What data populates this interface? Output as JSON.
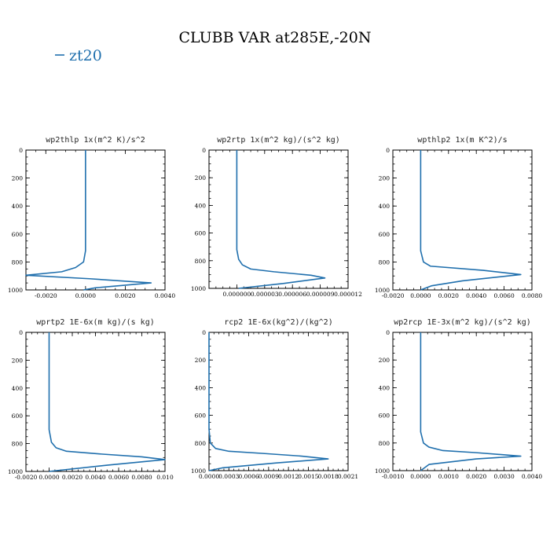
{
  "figure": {
    "title": "CLUBB VAR at285E,-20N",
    "legend": {
      "label": "zt20",
      "color": "#1f6fad"
    }
  },
  "chart_data": [
    {
      "type": "line",
      "title": "wp2thlp  1x(m^2 K)/s^2",
      "xlim": [
        -0.003,
        0.004
      ],
      "ylim": [
        1000,
        0
      ],
      "xticks": [
        -0.002,
        0.0,
        0.002,
        0.004
      ],
      "xtick_labels": [
        "-0.0020",
        "0.0000",
        "0.0020",
        "0.0040"
      ],
      "yticks": [
        0,
        200,
        400,
        600,
        800,
        1000
      ],
      "series": [
        {
          "x": [
            0.0,
            0.0,
            0.0,
            -0.0001,
            -0.0005,
            -0.0012,
            -0.003,
            0.0002,
            0.0033,
            0.0005,
            -0.0001
          ],
          "y": [
            0,
            300,
            720,
            800,
            840,
            870,
            895,
            920,
            950,
            985,
            1000
          ]
        }
      ]
    },
    {
      "type": "line",
      "title": "wp2rtp  1x(m^2 kg)/(s^2 kg)",
      "xlim": [
        -3e-06,
        1.2e-05
      ],
      "ylim": [
        1000,
        0
      ],
      "xticks": [
        0.0,
        3e-06,
        6e-06,
        9e-06,
        1.2e-05
      ],
      "xtick_labels": [
        "0.000000",
        "0.000003",
        "0.000006",
        "0.000009",
        "0.000012"
      ],
      "yticks": [
        0,
        200,
        400,
        600,
        800,
        1000
      ],
      "series": [
        {
          "x": [
            0.0,
            0.0,
            0.0,
            2e-07,
            6e-07,
            1.5e-06,
            4e-06,
            8e-06,
            9.5e-06,
            5e-06,
            2e-07
          ],
          "y": [
            0,
            300,
            720,
            790,
            830,
            860,
            880,
            905,
            925,
            965,
            1000
          ]
        }
      ]
    },
    {
      "type": "line",
      "title": "wpthlp2  1x(m K^2)/s",
      "xlim": [
        -0.002,
        0.008
      ],
      "ylim": [
        1000,
        0
      ],
      "xticks": [
        -0.002,
        0.0,
        0.002,
        0.004,
        0.006,
        0.008
      ],
      "xtick_labels": [
        "-0.0020",
        "0.0000",
        "0.0020",
        "0.0040",
        "0.0060",
        "0.0080"
      ],
      "yticks": [
        0,
        200,
        400,
        600,
        800,
        1000
      ],
      "series": [
        {
          "x": [
            0.0,
            0.0,
            0.0,
            0.0002,
            0.0007,
            0.0045,
            0.0072,
            0.003,
            0.0008,
            0.0
          ],
          "y": [
            0,
            300,
            720,
            800,
            830,
            860,
            890,
            935,
            970,
            1000
          ]
        }
      ]
    },
    {
      "type": "line",
      "title": "wprtp2  1E-6x(m kg)/(s kg)",
      "xlim": [
        -0.002,
        0.01
      ],
      "ylim": [
        1000,
        0
      ],
      "xticks": [
        -0.002,
        0.0,
        0.002,
        0.004,
        0.006,
        0.008,
        0.01
      ],
      "xtick_labels": [
        "-0.0020",
        "0.0000",
        "0.0020",
        "0.0040",
        "0.0060",
        "0.0080",
        "0.010"
      ],
      "yticks": [
        0,
        200,
        400,
        600,
        800,
        1000
      ],
      "series": [
        {
          "x": [
            0.0,
            0.0,
            0.0,
            0.0002,
            0.0006,
            0.0015,
            0.0045,
            0.008,
            0.01,
            0.005,
            0.0
          ],
          "y": [
            0,
            300,
            700,
            790,
            830,
            855,
            875,
            895,
            915,
            955,
            1000
          ]
        }
      ]
    },
    {
      "type": "line",
      "title": "rcp2  1E-6x(kg^2)/(kg^2)",
      "xlim": [
        0.0,
        0.0021
      ],
      "ylim": [
        1000,
        0
      ],
      "xticks": [
        0.0,
        0.0003,
        0.0006,
        0.0009,
        0.0012,
        0.0015,
        0.0018,
        0.0021
      ],
      "xtick_labels": [
        "0.0000",
        "0.0003",
        "0.0006",
        "0.0009",
        "0.0012",
        "0.0015",
        "0.0018",
        "0.0021"
      ],
      "yticks": [
        0,
        200,
        400,
        600,
        800,
        1000
      ],
      "series": [
        {
          "x": [
            0.0,
            0.0,
            2e-05,
            0.0001,
            0.0003,
            0.0008,
            0.0014,
            0.0018,
            0.001,
            0.0002,
            0.0
          ],
          "y": [
            0,
            700,
            800,
            840,
            860,
            875,
            895,
            915,
            945,
            980,
            1000
          ]
        }
      ]
    },
    {
      "type": "line",
      "title": "wp2rcp  1E-3x(m^2 kg)/(s^2 kg)",
      "xlim": [
        -0.001,
        0.004
      ],
      "ylim": [
        1000,
        0
      ],
      "xticks": [
        -0.001,
        0.0,
        0.001,
        0.002,
        0.003,
        0.004
      ],
      "xtick_labels": [
        "-0.0010",
        "0.0000",
        "0.0010",
        "0.0020",
        "0.0030",
        "0.0040"
      ],
      "yticks": [
        0,
        200,
        400,
        600,
        800,
        1000
      ],
      "series": [
        {
          "x": [
            0.0,
            0.0,
            0.0,
            0.0001,
            0.0003,
            0.0008,
            0.002,
            0.0036,
            0.002,
            0.0003,
            0.0
          ],
          "y": [
            0,
            300,
            720,
            800,
            830,
            855,
            870,
            895,
            915,
            955,
            1000
          ]
        }
      ]
    }
  ]
}
